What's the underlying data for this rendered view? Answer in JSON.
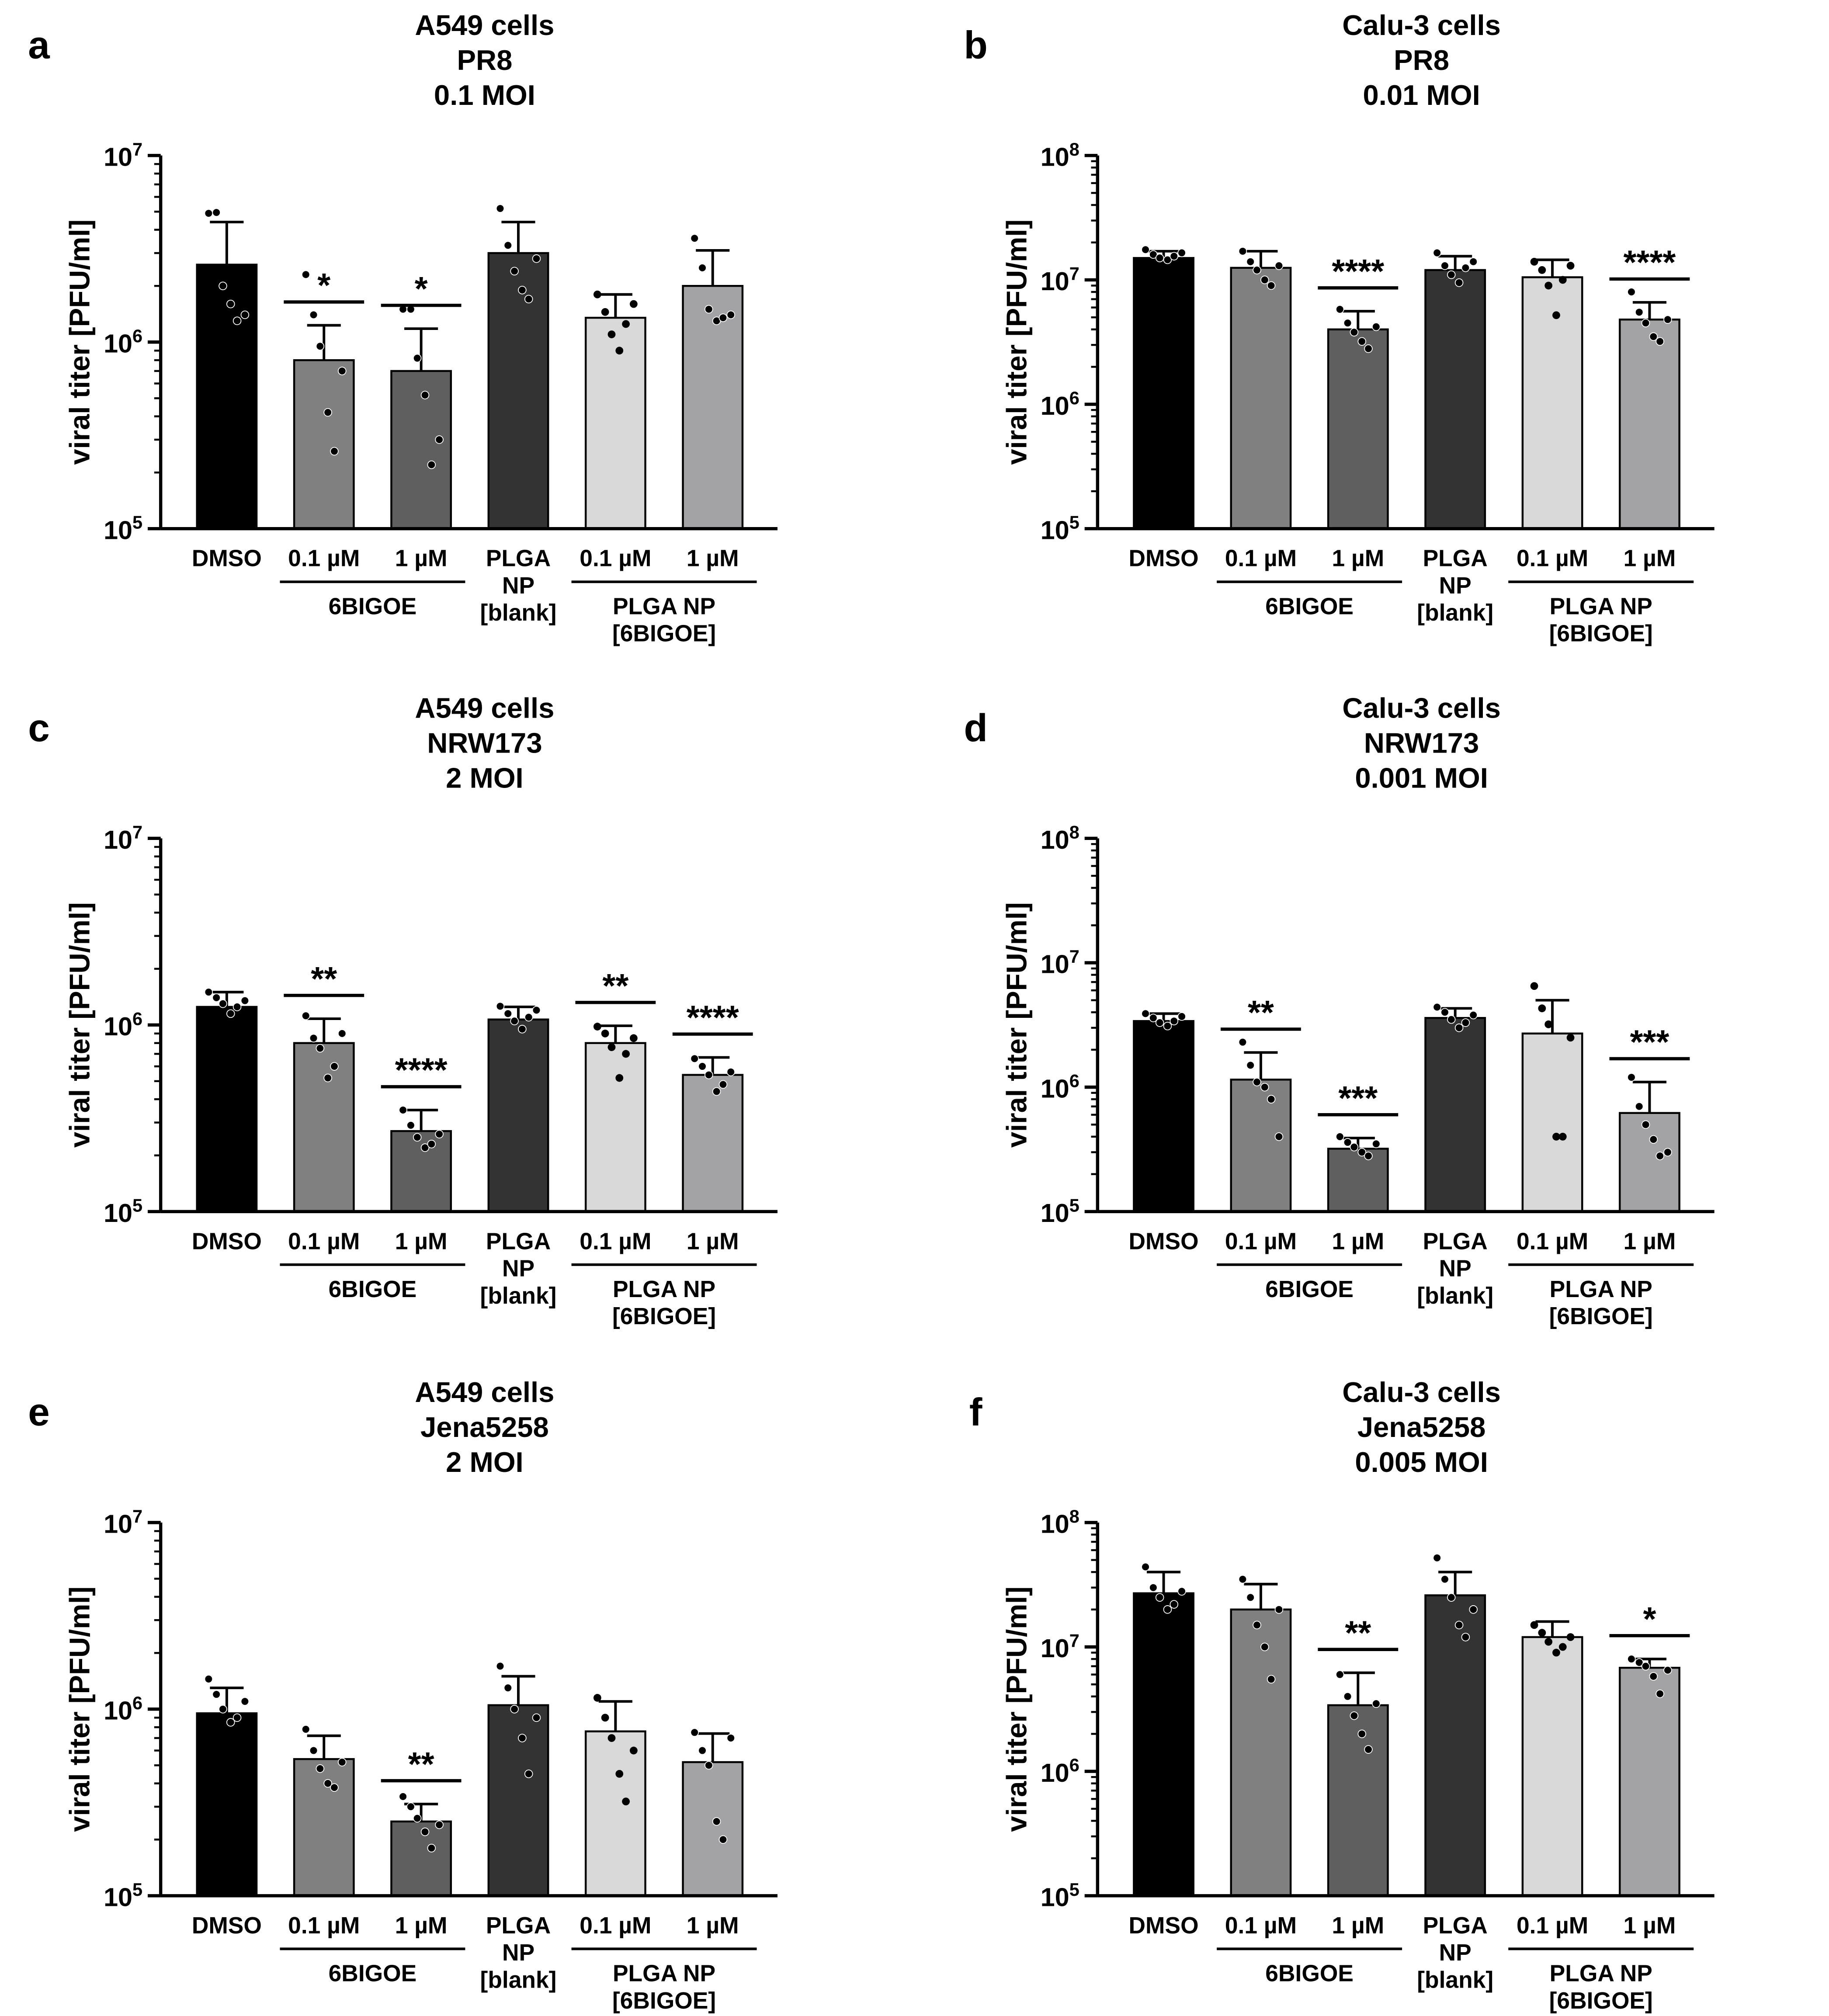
{
  "figure": {
    "y_axis_label": "viral titer [PFU/ml]"
  },
  "chart_data": [
    {
      "panel_letter": "a",
      "type": "bar",
      "scale": "log",
      "title_lines": [
        "A549 cells",
        "PR8",
        "0.1 MOI"
      ],
      "ylabel": "viral titer [PFU/ml]",
      "ylim": [
        100000,
        10000000
      ],
      "y_ticks": [
        {
          "base": "10",
          "exp": "5",
          "value": 100000
        },
        {
          "base": "10",
          "exp": "6",
          "value": 1000000
        },
        {
          "base": "10",
          "exp": "7",
          "value": 10000000
        }
      ],
      "categories": [
        "DMSO",
        "0.1 µM",
        "1 µM",
        "PLGA\nNP\n[blank]",
        "0.1 µM",
        "1 µM"
      ],
      "group_labels": [
        {
          "text": "6BIGOE",
          "from": 1,
          "to": 2
        },
        {
          "text": "PLGA NP\n[6BIGOE]",
          "from": 4,
          "to": 5
        }
      ],
      "colors": [
        "#000000",
        "#808080",
        "#5f5f5f",
        "#333333",
        "#d9d9d9",
        "#a3a3a6"
      ],
      "values": [
        2600000,
        800000,
        700000,
        3000000,
        1350000,
        2000000
      ],
      "errors": [
        4400000,
        1230000,
        1180000,
        4400000,
        1800000,
        3100000
      ],
      "points": [
        [
          4900000,
          4950000,
          2000000,
          1600000,
          1300000,
          1400000
        ],
        [
          2300000,
          1400000,
          950000,
          420000,
          260000,
          700000
        ],
        [
          1500000,
          1500000,
          820000,
          520000,
          220000,
          300000
        ],
        [
          5200000,
          3300000,
          2400000,
          1900000,
          1700000,
          2800000
        ],
        [
          1800000,
          1450000,
          1100000,
          900000,
          1250000,
          1600000
        ],
        [
          3600000,
          2500000,
          1500000,
          1300000,
          1350000,
          1400000
        ]
      ],
      "significance": [
        "",
        "*",
        "*",
        "",
        "",
        ""
      ]
    },
    {
      "panel_letter": "b",
      "type": "bar",
      "scale": "log",
      "title_lines": [
        "Calu-3 cells",
        "PR8",
        "0.01 MOI"
      ],
      "ylabel": "viral titer [PFU/ml]",
      "ylim": [
        100000,
        100000000
      ],
      "y_ticks": [
        {
          "base": "10",
          "exp": "5",
          "value": 100000
        },
        {
          "base": "10",
          "exp": "6",
          "value": 1000000
        },
        {
          "base": "10",
          "exp": "7",
          "value": 10000000
        },
        {
          "base": "10",
          "exp": "8",
          "value": 100000000
        }
      ],
      "categories": [
        "DMSO",
        "0.1 µM",
        "1 µM",
        "PLGA\nNP\n[blank]",
        "0.1 µM",
        "1 µM"
      ],
      "group_labels": [
        {
          "text": "6BIGOE",
          "from": 1,
          "to": 2
        },
        {
          "text": "PLGA NP\n[6BIGOE]",
          "from": 4,
          "to": 5
        }
      ],
      "colors": [
        "#000000",
        "#808080",
        "#5f5f5f",
        "#333333",
        "#d9d9d9",
        "#a3a3a6"
      ],
      "values": [
        15000000,
        12500000,
        4000000,
        12000000,
        10500000,
        4800000
      ],
      "errors": [
        17000000,
        17000000,
        5600000,
        15500000,
        14500000,
        6600000
      ],
      "points": [
        [
          17500000,
          16000000,
          15000000,
          14500000,
          15500000,
          16500000
        ],
        [
          17000000,
          14000000,
          12000000,
          10000000,
          9000000,
          13000000
        ],
        [
          5800000,
          4500000,
          3800000,
          3200000,
          2800000,
          4200000
        ],
        [
          16500000,
          13000000,
          11000000,
          9500000,
          12500000,
          14000000
        ],
        [
          14000000,
          12000000,
          9000000,
          5200000,
          10000000,
          13000000
        ],
        [
          8000000,
          5500000,
          4500000,
          3500000,
          3200000,
          4800000
        ]
      ],
      "significance": [
        "",
        "",
        "****",
        "",
        "",
        "****"
      ]
    },
    {
      "panel_letter": "c",
      "type": "bar",
      "scale": "log",
      "title_lines": [
        "A549 cells",
        "NRW173",
        "2 MOI"
      ],
      "ylabel": "viral titer [PFU/ml]",
      "ylim": [
        100000,
        10000000
      ],
      "y_ticks": [
        {
          "base": "10",
          "exp": "5",
          "value": 100000
        },
        {
          "base": "10",
          "exp": "6",
          "value": 1000000
        },
        {
          "base": "10",
          "exp": "7",
          "value": 10000000
        }
      ],
      "categories": [
        "DMSO",
        "0.1 µM",
        "1 µM",
        "PLGA\nNP\n[blank]",
        "0.1 µM",
        "1 µM"
      ],
      "group_labels": [
        {
          "text": "6BIGOE",
          "from": 1,
          "to": 2
        },
        {
          "text": "PLGA NP\n[6BIGOE]",
          "from": 4,
          "to": 5
        }
      ],
      "colors": [
        "#000000",
        "#808080",
        "#5f5f5f",
        "#333333",
        "#d9d9d9",
        "#a3a3a6"
      ],
      "values": [
        1250000,
        800000,
        270000,
        1070000,
        800000,
        540000
      ],
      "errors": [
        1500000,
        1080000,
        350000,
        1250000,
        990000,
        670000
      ],
      "points": [
        [
          1500000,
          1400000,
          1300000,
          1150000,
          1250000,
          1350000
        ],
        [
          1120000,
          850000,
          750000,
          520000,
          600000,
          900000
        ],
        [
          350000,
          290000,
          250000,
          220000,
          230000,
          260000
        ],
        [
          1260000,
          1150000,
          1050000,
          950000,
          1100000,
          1200000
        ],
        [
          980000,
          900000,
          760000,
          520000,
          700000,
          850000
        ],
        [
          660000,
          600000,
          540000,
          440000,
          480000,
          560000
        ]
      ],
      "significance": [
        "",
        "**",
        "****",
        "",
        "**",
        "****"
      ]
    },
    {
      "panel_letter": "d",
      "type": "bar",
      "scale": "log",
      "title_lines": [
        "Calu-3 cells",
        "NRW173",
        "0.001 MOI"
      ],
      "ylabel": "viral titer [PFU/ml]",
      "ylim": [
        100000,
        100000000
      ],
      "y_ticks": [
        {
          "base": "10",
          "exp": "5",
          "value": 100000
        },
        {
          "base": "10",
          "exp": "6",
          "value": 1000000
        },
        {
          "base": "10",
          "exp": "7",
          "value": 10000000
        },
        {
          "base": "10",
          "exp": "8",
          "value": 100000000
        }
      ],
      "categories": [
        "DMSO",
        "0.1 µM",
        "1 µM",
        "PLGA\nNP\n[blank]",
        "0.1 µM",
        "1 µM"
      ],
      "group_labels": [
        {
          "text": "6BIGOE",
          "from": 1,
          "to": 2
        },
        {
          "text": "PLGA NP\n[6BIGOE]",
          "from": 4,
          "to": 5
        }
      ],
      "colors": [
        "#000000",
        "#808080",
        "#5f5f5f",
        "#333333",
        "#d9d9d9",
        "#a3a3a6"
      ],
      "values": [
        3400000,
        1150000,
        320000,
        3600000,
        2700000,
        620000
      ],
      "errors": [
        3900000,
        1900000,
        390000,
        4300000,
        5000000,
        1100000
      ],
      "points": [
        [
          3900000,
          3600000,
          3300000,
          3100000,
          3400000,
          3700000
        ],
        [
          2300000,
          1500000,
          1100000,
          1000000,
          800000,
          400000
        ],
        [
          400000,
          360000,
          330000,
          300000,
          280000,
          350000
        ],
        [
          4400000,
          4000000,
          3500000,
          3000000,
          3300000,
          3800000
        ],
        [
          6500000,
          4300000,
          3200000,
          400000,
          400000,
          2500000
        ],
        [
          1200000,
          700000,
          500000,
          380000,
          280000,
          300000
        ]
      ],
      "significance": [
        "",
        "**",
        "***",
        "",
        "",
        "***"
      ]
    },
    {
      "panel_letter": "e",
      "type": "bar",
      "scale": "log",
      "title_lines": [
        "A549 cells",
        "Jena5258",
        "2 MOI"
      ],
      "ylabel": "viral titer [PFU/ml]",
      "ylim": [
        100000,
        10000000
      ],
      "y_ticks": [
        {
          "base": "10",
          "exp": "5",
          "value": 100000
        },
        {
          "base": "10",
          "exp": "6",
          "value": 1000000
        },
        {
          "base": "10",
          "exp": "7",
          "value": 10000000
        }
      ],
      "categories": [
        "DMSO",
        "0.1 µM",
        "1 µM",
        "PLGA\nNP\n[blank]",
        "0.1 µM",
        "1 µM"
      ],
      "group_labels": [
        {
          "text": "6BIGOE",
          "from": 1,
          "to": 2
        },
        {
          "text": "PLGA NP\n[6BIGOE]",
          "from": 4,
          "to": 5
        }
      ],
      "colors": [
        "#000000",
        "#808080",
        "#5f5f5f",
        "#333333",
        "#d9d9d9",
        "#a3a3a6"
      ],
      "values": [
        950000,
        540000,
        250000,
        1050000,
        760000,
        520000
      ],
      "errors": [
        1300000,
        720000,
        310000,
        1500000,
        1100000,
        740000
      ],
      "points": [
        [
          1450000,
          1200000,
          1000000,
          850000,
          900000,
          1100000
        ],
        [
          780000,
          600000,
          480000,
          400000,
          380000,
          520000
        ],
        [
          340000,
          300000,
          260000,
          220000,
          180000,
          240000
        ],
        [
          1700000,
          1300000,
          1000000,
          700000,
          450000,
          900000
        ],
        [
          1150000,
          900000,
          700000,
          450000,
          320000,
          600000
        ],
        [
          750000,
          600000,
          500000,
          250000,
          200000,
          700000
        ]
      ],
      "significance": [
        "",
        "",
        "**",
        "",
        "",
        ""
      ]
    },
    {
      "panel_letter": "f",
      "type": "bar",
      "scale": "log",
      "title_lines": [
        "Calu-3 cells",
        "Jena5258",
        "0.005 MOI"
      ],
      "ylabel": "viral titer [PFU/ml]",
      "ylim": [
        100000,
        100000000
      ],
      "y_ticks": [
        {
          "base": "10",
          "exp": "5",
          "value": 100000
        },
        {
          "base": "10",
          "exp": "6",
          "value": 1000000
        },
        {
          "base": "10",
          "exp": "7",
          "value": 10000000
        },
        {
          "base": "10",
          "exp": "8",
          "value": 100000000
        }
      ],
      "categories": [
        "DMSO",
        "0.1 µM",
        "1 µM",
        "PLGA\nNP\n[blank]",
        "0.1 µM",
        "1 µM"
      ],
      "group_labels": [
        {
          "text": "6BIGOE",
          "from": 1,
          "to": 2
        },
        {
          "text": "PLGA NP\n[6BIGOE]",
          "from": 4,
          "to": 5
        }
      ],
      "colors": [
        "#000000",
        "#808080",
        "#5f5f5f",
        "#333333",
        "#d9d9d9",
        "#a3a3a6"
      ],
      "values": [
        27000000,
        20000000,
        3400000,
        26000000,
        12000000,
        6800000
      ],
      "errors": [
        40000000,
        32000000,
        6200000,
        40000000,
        16000000,
        8000000
      ],
      "points": [
        [
          44000000,
          30000000,
          25000000,
          20000000,
          22000000,
          28000000
        ],
        [
          35000000,
          25000000,
          15000000,
          10000000,
          5500000,
          20000000
        ],
        [
          6000000,
          4000000,
          2800000,
          2000000,
          1500000,
          3500000
        ],
        [
          52000000,
          35000000,
          25000000,
          15000000,
          12000000,
          20000000
        ],
        [
          15000000,
          13000000,
          11000000,
          9000000,
          10000000,
          12000000
        ],
        [
          8000000,
          7500000,
          7000000,
          5800000,
          4200000,
          6500000
        ]
      ],
      "significance": [
        "",
        "",
        "**",
        "",
        "",
        "*"
      ]
    }
  ]
}
